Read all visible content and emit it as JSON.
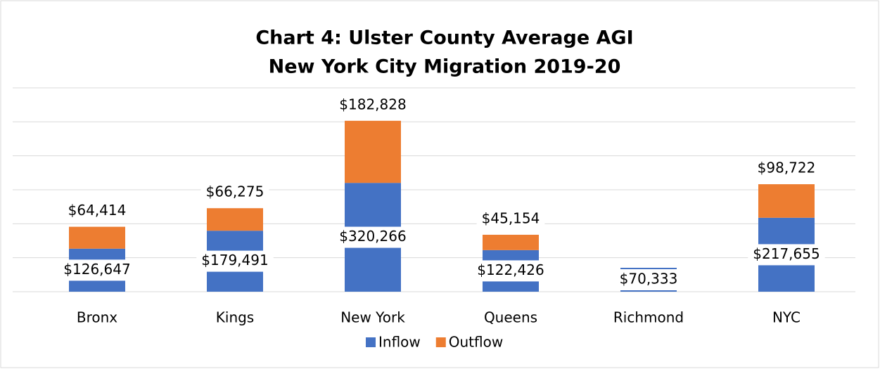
{
  "chart_data": {
    "type": "stacked_bar",
    "title": "Chart 4: Ulster County Average AGI",
    "subtitle": "New York City Migration 2019-20",
    "categories": [
      "Bronx",
      "Kings",
      "New York",
      "Queens",
      "Richmond",
      "NYC"
    ],
    "series": [
      {
        "name": "Inflow",
        "color": "#4472c4",
        "values": [
          126647,
          179491,
          320266,
          122426,
          70333,
          217655
        ],
        "value_labels": [
          "$126,647",
          "$179,491",
          "$320,266",
          "$122,426",
          "$70,333",
          "$217,655"
        ]
      },
      {
        "name": "Outflow",
        "color": "#ed7d31",
        "values": [
          64414,
          66275,
          182828,
          45154,
          null,
          98722
        ],
        "value_labels": [
          "$64,414",
          "$66,275",
          "$182,828",
          "$45,154",
          null,
          "$98,722"
        ]
      }
    ],
    "ylim": [
      0,
      600000
    ],
    "yticks": [
      0,
      100000,
      200000,
      300000,
      400000,
      500000,
      600000
    ],
    "grid": true,
    "legend": "bottom"
  }
}
